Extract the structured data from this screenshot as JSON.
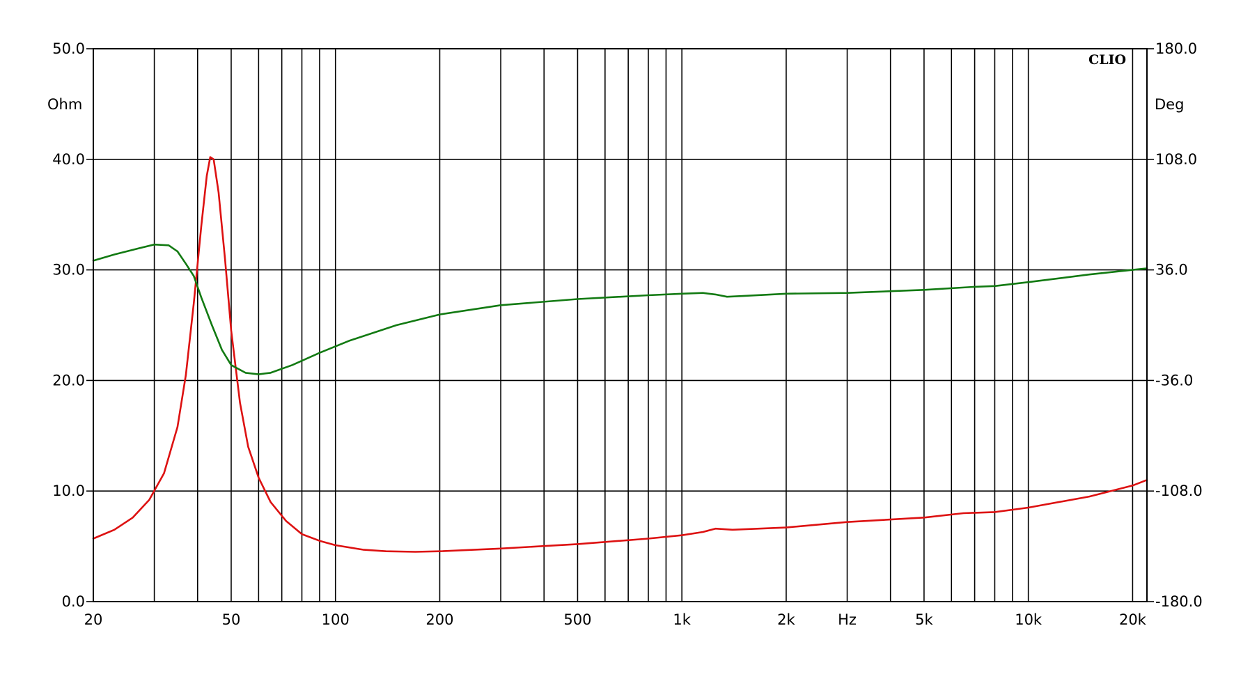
{
  "chart_data": {
    "type": "line",
    "brand": "CLIO",
    "x_scale": "log",
    "xlim": [
      20,
      22000
    ],
    "x_ticks": [
      {
        "v": 20,
        "label": "20"
      },
      {
        "v": 50,
        "label": "50"
      },
      {
        "v": 100,
        "label": "100"
      },
      {
        "v": 200,
        "label": "200"
      },
      {
        "v": 500,
        "label": "500"
      },
      {
        "v": 1000,
        "label": "1k"
      },
      {
        "v": 2000,
        "label": "2k"
      },
      {
        "v": 5000,
        "label": "5k"
      },
      {
        "v": 10000,
        "label": "10k"
      },
      {
        "v": 20000,
        "label": "20k"
      }
    ],
    "x_unit": {
      "v": 3000,
      "label": "Hz"
    },
    "grid": true,
    "y_left": {
      "unit": "Ohm",
      "range": [
        0,
        50
      ],
      "ticks": [
        "0.0",
        "10.0",
        "20.0",
        "30.0",
        "40.0",
        "50.0"
      ]
    },
    "y_right": {
      "unit": "Deg",
      "range": [
        -180,
        180
      ],
      "ticks": [
        "-180.0",
        "-108.0",
        "-36.0",
        "36.0",
        "108.0",
        "180.0"
      ]
    },
    "series": [
      {
        "axis": "left",
        "color": "#dd1111",
        "points": [
          [
            20,
            5.7
          ],
          [
            23,
            6.5
          ],
          [
            26,
            7.6
          ],
          [
            29,
            9.2
          ],
          [
            32,
            11.6
          ],
          [
            35,
            15.8
          ],
          [
            37,
            20.5
          ],
          [
            39,
            27.0
          ],
          [
            41,
            34.0
          ],
          [
            42.5,
            38.5
          ],
          [
            43.5,
            40.2
          ],
          [
            44.5,
            40.0
          ],
          [
            46,
            37.0
          ],
          [
            48,
            31.0
          ],
          [
            50,
            24.5
          ],
          [
            53,
            18.0
          ],
          [
            56,
            14.0
          ],
          [
            60,
            11.2
          ],
          [
            65,
            9.0
          ],
          [
            72,
            7.3
          ],
          [
            80,
            6.1
          ],
          [
            90,
            5.5
          ],
          [
            100,
            5.1
          ],
          [
            120,
            4.7
          ],
          [
            140,
            4.55
          ],
          [
            170,
            4.5
          ],
          [
            200,
            4.55
          ],
          [
            300,
            4.8
          ],
          [
            500,
            5.2
          ],
          [
            800,
            5.7
          ],
          [
            1000,
            6.0
          ],
          [
            1150,
            6.3
          ],
          [
            1250,
            6.6
          ],
          [
            1400,
            6.5
          ],
          [
            2000,
            6.7
          ],
          [
            3000,
            7.2
          ],
          [
            5000,
            7.6
          ],
          [
            6500,
            8.0
          ],
          [
            8000,
            8.1
          ],
          [
            10000,
            8.5
          ],
          [
            15000,
            9.5
          ],
          [
            20000,
            10.5
          ],
          [
            22000,
            11.0
          ]
        ]
      },
      {
        "axis": "right",
        "color": "#127a12",
        "points": [
          [
            20,
            42
          ],
          [
            23,
            46
          ],
          [
            27,
            50
          ],
          [
            30,
            52.5
          ],
          [
            33,
            52
          ],
          [
            35,
            48
          ],
          [
            37,
            40
          ],
          [
            39,
            32
          ],
          [
            41,
            18
          ],
          [
            44,
            0
          ],
          [
            47,
            -16
          ],
          [
            50,
            -26
          ],
          [
            55,
            -31
          ],
          [
            60,
            -32
          ],
          [
            65,
            -31
          ],
          [
            75,
            -26
          ],
          [
            90,
            -18
          ],
          [
            110,
            -10
          ],
          [
            150,
            0
          ],
          [
            200,
            7
          ],
          [
            300,
            13
          ],
          [
            500,
            17
          ],
          [
            800,
            19.5
          ],
          [
            1000,
            20.5
          ],
          [
            1150,
            21
          ],
          [
            1250,
            20
          ],
          [
            1350,
            18.5
          ],
          [
            1500,
            19
          ],
          [
            2000,
            20.5
          ],
          [
            3000,
            21
          ],
          [
            5000,
            23
          ],
          [
            7000,
            25
          ],
          [
            8000,
            25.5
          ],
          [
            10000,
            28
          ],
          [
            15000,
            33
          ],
          [
            20000,
            36
          ],
          [
            22000,
            37
          ]
        ]
      }
    ]
  }
}
